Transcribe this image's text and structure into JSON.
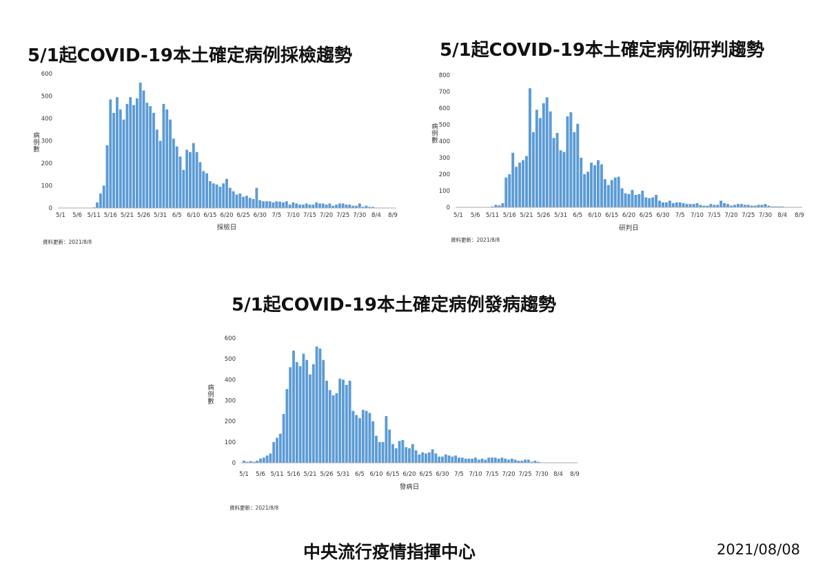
{
  "footer": {
    "organization": "中央流行疫情指揮中心",
    "date": "2021/08/08"
  },
  "colors": {
    "bar": "#5b9bd5",
    "axis": "#aaaaaa"
  },
  "chart_data": [
    {
      "type": "bar",
      "title": "5/1起COVID-19本土確定病例採檢趨勢",
      "xlabel": "採檢日",
      "ylabel": "病例數",
      "ylim": [
        0,
        600
      ],
      "yticks": [
        0,
        100,
        200,
        300,
        400,
        500,
        600
      ],
      "xticks": [
        "5/1",
        "5/6",
        "5/11",
        "5/16",
        "5/21",
        "5/26",
        "5/31",
        "6/5",
        "6/10",
        "6/15",
        "6/20",
        "6/25",
        "6/30",
        "7/5",
        "7/10",
        "7/15",
        "7/20",
        "7/25",
        "7/30",
        "8/4",
        "8/9"
      ],
      "note": "資料更新：2021/8/8",
      "grid": false,
      "legend": "none",
      "start_date": "5/1",
      "end_date": "8/9",
      "values": [
        0,
        0,
        0,
        0,
        0,
        0,
        0,
        0,
        0,
        1,
        3,
        25,
        65,
        100,
        280,
        485,
        425,
        495,
        440,
        395,
        465,
        495,
        460,
        490,
        560,
        525,
        470,
        455,
        425,
        350,
        300,
        465,
        440,
        395,
        310,
        275,
        230,
        170,
        260,
        250,
        290,
        250,
        205,
        165,
        155,
        120,
        110,
        105,
        95,
        110,
        130,
        90,
        75,
        60,
        65,
        50,
        55,
        45,
        40,
        90,
        35,
        30,
        30,
        30,
        25,
        30,
        28,
        25,
        30,
        15,
        25,
        20,
        15,
        15,
        20,
        15,
        15,
        25,
        20,
        20,
        15,
        20,
        10,
        15,
        20,
        20,
        15,
        15,
        10,
        10,
        20,
        5,
        10,
        5,
        5,
        2,
        0,
        0,
        0,
        0,
        0
      ]
    },
    {
      "type": "bar",
      "title": "5/1起COVID-19本土確定病例研判趨勢",
      "xlabel": "研判日",
      "ylabel": "病例數",
      "ylim": [
        0,
        800
      ],
      "yticks": [
        0,
        100,
        200,
        300,
        400,
        500,
        600,
        700,
        800
      ],
      "xticks": [
        "5/1",
        "5/6",
        "5/11",
        "5/16",
        "5/21",
        "5/26",
        "5/31",
        "6/5",
        "6/10",
        "6/15",
        "6/20",
        "6/25",
        "6/30",
        "7/5",
        "7/10",
        "7/15",
        "7/20",
        "7/25",
        "7/30",
        "8/4",
        "8/9"
      ],
      "note": "資料更新：2021/8/8",
      "grid": false,
      "legend": "none",
      "start_date": "5/1",
      "end_date": "8/9",
      "values": [
        0,
        0,
        0,
        0,
        0,
        0,
        0,
        0,
        0,
        2,
        5,
        15,
        12,
        25,
        180,
        200,
        330,
        245,
        270,
        285,
        310,
        720,
        455,
        590,
        540,
        630,
        665,
        580,
        420,
        450,
        345,
        335,
        550,
        575,
        455,
        505,
        300,
        200,
        215,
        270,
        255,
        285,
        260,
        170,
        135,
        165,
        180,
        185,
        115,
        85,
        80,
        105,
        75,
        80,
        100,
        60,
        55,
        60,
        75,
        40,
        30,
        30,
        40,
        25,
        30,
        30,
        25,
        20,
        20,
        20,
        25,
        15,
        10,
        10,
        20,
        15,
        15,
        40,
        25,
        20,
        10,
        15,
        20,
        20,
        15,
        15,
        10,
        10,
        15,
        15,
        20,
        10,
        5,
        5,
        5,
        5,
        0,
        0,
        0,
        0,
        0
      ]
    },
    {
      "type": "bar",
      "title": "5/1起COVID-19本土確定病例發病趨勢",
      "xlabel": "發病日",
      "ylabel": "病例數",
      "ylim": [
        0,
        600
      ],
      "yticks": [
        0,
        100,
        200,
        300,
        400,
        500,
        600
      ],
      "xticks": [
        "5/1",
        "5/6",
        "5/11",
        "5/16",
        "5/21",
        "5/26",
        "5/31",
        "6/5",
        "6/10",
        "6/15",
        "6/20",
        "6/25",
        "6/30",
        "7/5",
        "7/10",
        "7/15",
        "7/20",
        "7/25",
        "7/30",
        "8/4",
        "8/9"
      ],
      "note": "資料更新：2021/8/8",
      "grid": false,
      "legend": "none",
      "start_date": "5/1",
      "end_date": "8/9",
      "values": [
        10,
        5,
        8,
        5,
        10,
        20,
        25,
        35,
        45,
        100,
        120,
        140,
        235,
        355,
        460,
        540,
        485,
        465,
        525,
        495,
        425,
        475,
        560,
        550,
        495,
        395,
        350,
        325,
        335,
        405,
        400,
        375,
        395,
        250,
        230,
        215,
        255,
        250,
        240,
        200,
        130,
        100,
        100,
        225,
        160,
        90,
        70,
        105,
        110,
        75,
        70,
        90,
        60,
        40,
        50,
        45,
        50,
        65,
        45,
        30,
        30,
        40,
        35,
        30,
        35,
        25,
        25,
        20,
        20,
        20,
        25,
        15,
        20,
        15,
        25,
        25,
        25,
        20,
        25,
        20,
        15,
        20,
        15,
        10,
        10,
        15,
        15,
        5,
        10,
        5,
        0,
        0,
        0,
        0,
        0,
        0,
        0,
        0,
        0,
        0,
        0
      ]
    }
  ]
}
